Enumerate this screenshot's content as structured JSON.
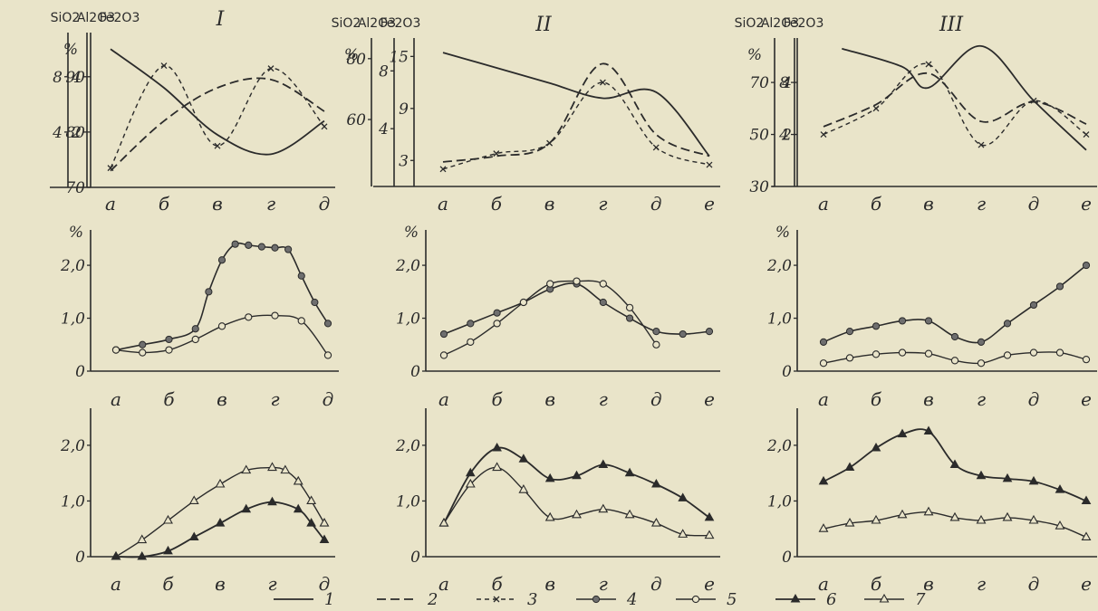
{
  "legend": {
    "items": [
      {
        "key": "1",
        "label": "1",
        "style": "solid"
      },
      {
        "key": "2",
        "label": "2",
        "style": "dash"
      },
      {
        "key": "3",
        "label": "3",
        "style": "dash-x"
      },
      {
        "key": "4",
        "label": "4",
        "style": "filled-circle"
      },
      {
        "key": "5",
        "label": "5",
        "style": "open-circle"
      },
      {
        "key": "6",
        "label": "6",
        "style": "filled-triangle"
      },
      {
        "key": "7",
        "label": "7",
        "style": "open-triangle"
      }
    ]
  },
  "colors": {
    "ink": "#2b2b2b",
    "paper": "#e9e4c9"
  },
  "chart_data": [
    {
      "type": "line",
      "title": "I",
      "panel": "top-left",
      "axis_labels": [
        "SiO2",
        "Al2O3",
        "Fe2O3"
      ],
      "unit": "%",
      "categories": [
        "а",
        "б",
        "в",
        "г",
        "д"
      ],
      "axes": [
        {
          "name": "SiO2",
          "ticks": [
            "70",
            "80",
            "90"
          ],
          "range": [
            70,
            97
          ]
        },
        {
          "name": "Al2O3",
          "ticks": [
            "4",
            "8"
          ],
          "range": [
            0,
            10.8
          ]
        },
        {
          "name": "Fe2O3",
          "ticks": [
            "2",
            "4"
          ],
          "range": [
            0,
            5.4
          ]
        }
      ],
      "series": [
        {
          "key": "1",
          "axis": 0,
          "x": [
            0,
            1,
            2,
            3,
            4
          ],
          "values": [
            95,
            88,
            79.5,
            76,
            82
          ]
        },
        {
          "key": "2",
          "axis": 1,
          "x": [
            0,
            1,
            2,
            3,
            4
          ],
          "values": [
            1.2,
            4.8,
            7.2,
            7.8,
            5.5
          ]
        },
        {
          "key": "3",
          "axis": 2,
          "x": [
            0,
            1,
            2,
            3,
            4
          ],
          "values": [
            0.7,
            4.4,
            1.5,
            4.3,
            2.2
          ]
        }
      ]
    },
    {
      "type": "line",
      "title": "II",
      "panel": "top-middle",
      "axis_labels": [
        "SiO2",
        "Al2O3",
        "Fe2O3"
      ],
      "unit": "%",
      "categories": [
        "а",
        "б",
        "в",
        "г",
        "д",
        "е"
      ],
      "axes": [
        {
          "name": "SiO2",
          "ticks": [
            "60",
            "80"
          ],
          "range": [
            38,
            85
          ]
        },
        {
          "name": "Al2O3",
          "ticks": [
            "4",
            "8"
          ],
          "range": [
            0,
            9.9
          ]
        },
        {
          "name": "Fe2O3",
          "ticks": [
            "3",
            "9",
            "15"
          ],
          "range": [
            0,
            16.5
          ]
        }
      ],
      "series": [
        {
          "key": "1",
          "axis": 0,
          "x": [
            0,
            1,
            2,
            3,
            4,
            5
          ],
          "values": [
            82,
            77,
            72,
            67,
            69,
            48
          ]
        },
        {
          "key": "2",
          "axis": 1,
          "x": [
            0,
            1,
            2,
            3,
            4,
            5
          ],
          "values": [
            1.7,
            2.1,
            3.0,
            8.5,
            3.6,
            2.1
          ]
        },
        {
          "key": "3",
          "axis": 2,
          "x": [
            0,
            1,
            2,
            3,
            4,
            5
          ],
          "values": [
            2.0,
            3.8,
            5.0,
            12.0,
            4.5,
            2.5
          ]
        }
      ]
    },
    {
      "type": "line",
      "title": "III",
      "panel": "top-right",
      "axis_labels": [
        "SiO2",
        "Al2O3",
        "Fe2O3"
      ],
      "unit": "%",
      "categories": [
        "а",
        "б",
        "в",
        "г",
        "д",
        "е"
      ],
      "axes": [
        {
          "name": "SiO2",
          "ticks": [
            "30",
            "50",
            "70"
          ],
          "range": [
            30,
            85
          ]
        },
        {
          "name": "Al2O3",
          "ticks": [
            "4",
            "8"
          ],
          "range": [
            0,
            11
          ]
        },
        {
          "name": "Fe2O3",
          "ticks": [
            "2",
            "4"
          ],
          "range": [
            0,
            5.5
          ]
        }
      ],
      "series": [
        {
          "key": "1",
          "axis": 0,
          "x": [
            0.35,
            1.5,
            2,
            3,
            4,
            5
          ],
          "values": [
            83,
            76,
            68,
            84,
            63,
            44
          ]
        },
        {
          "key": "2",
          "axis": 1,
          "x": [
            0,
            1,
            2,
            3,
            4,
            5
          ],
          "values": [
            4.6,
            6.3,
            8.7,
            5.0,
            6.5,
            4.8
          ]
        },
        {
          "key": "3",
          "axis": 2,
          "x": [
            0,
            1,
            2,
            3,
            4,
            5
          ],
          "values": [
            2.0,
            3.0,
            4.7,
            1.6,
            3.3,
            2.0
          ]
        }
      ]
    },
    {
      "type": "line",
      "panel": "middle-left",
      "unit": "%",
      "categories": [
        "а",
        "б",
        "в",
        "г",
        "д"
      ],
      "yticks": [
        "0",
        "1,0",
        "2,0"
      ],
      "ylim": [
        0,
        2.6
      ],
      "series": [
        {
          "key": "4",
          "x": [
            0,
            0.5,
            1,
            1.5,
            1.75,
            2,
            2.25,
            2.5,
            2.75,
            3,
            3.25,
            3.5,
            3.75,
            4
          ],
          "values": [
            0.4,
            0.5,
            0.6,
            0.8,
            1.5,
            2.1,
            2.4,
            2.38,
            2.35,
            2.33,
            2.3,
            1.8,
            1.3,
            0.9
          ]
        },
        {
          "key": "5",
          "x": [
            0,
            0.5,
            1,
            1.5,
            2,
            2.5,
            3,
            3.5,
            4
          ],
          "values": [
            0.4,
            0.35,
            0.4,
            0.6,
            0.85,
            1.02,
            1.05,
            0.95,
            0.3
          ]
        }
      ]
    },
    {
      "type": "line",
      "panel": "middle-middle",
      "unit": "%",
      "categories": [
        "а",
        "б",
        "в",
        "г",
        "д",
        "е"
      ],
      "yticks": [
        "0",
        "1,0",
        "2,0"
      ],
      "ylim": [
        0,
        2.6
      ],
      "series": [
        {
          "key": "4",
          "x": [
            0,
            0.5,
            1,
            1.5,
            2,
            2.5,
            3,
            3.5,
            4,
            4.5,
            5
          ],
          "values": [
            0.7,
            0.9,
            1.1,
            1.3,
            1.55,
            1.65,
            1.3,
            1.0,
            0.75,
            0.7,
            0.75
          ]
        },
        {
          "key": "5",
          "x": [
            0,
            0.5,
            1,
            1.5,
            2,
            2.5,
            3,
            3.5,
            4
          ],
          "values": [
            0.3,
            0.55,
            0.9,
            1.3,
            1.65,
            1.7,
            1.65,
            1.2,
            0.5
          ]
        }
      ]
    },
    {
      "type": "line",
      "panel": "middle-right",
      "unit": "%",
      "categories": [
        "а",
        "б",
        "в",
        "г",
        "д",
        "е"
      ],
      "yticks": [
        "0",
        "1,0",
        "2,0"
      ],
      "ylim": [
        0,
        2.6
      ],
      "series": [
        {
          "key": "4",
          "x": [
            0,
            0.5,
            1,
            1.5,
            2,
            2.5,
            3,
            3.5,
            4,
            4.5,
            5
          ],
          "values": [
            0.55,
            0.75,
            0.85,
            0.95,
            0.95,
            0.65,
            0.55,
            0.9,
            1.25,
            1.6,
            2.0
          ]
        },
        {
          "key": "5",
          "x": [
            0,
            0.5,
            1,
            1.5,
            2,
            2.5,
            3,
            3.5,
            4,
            4.5,
            5
          ],
          "values": [
            0.15,
            0.25,
            0.32,
            0.35,
            0.33,
            0.2,
            0.15,
            0.3,
            0.35,
            0.35,
            0.22
          ]
        }
      ]
    },
    {
      "type": "line",
      "panel": "bottom-left",
      "categories": [
        "а",
        "б",
        "в",
        "г",
        "д"
      ],
      "yticks": [
        "0",
        "1,0",
        "2,0"
      ],
      "ylim": [
        0,
        2.6
      ],
      "series": [
        {
          "key": "7",
          "x": [
            0,
            0.5,
            1,
            1.5,
            2,
            2.5,
            3,
            3.25,
            3.5,
            3.75,
            4
          ],
          "values": [
            0,
            0.3,
            0.65,
            1.0,
            1.3,
            1.55,
            1.6,
            1.55,
            1.35,
            1.0,
            0.6
          ]
        },
        {
          "key": "6",
          "x": [
            0,
            0.5,
            1,
            1.5,
            2,
            2.5,
            3,
            3.5,
            3.75,
            4
          ],
          "values": [
            0,
            0,
            0.1,
            0.35,
            0.6,
            0.85,
            0.98,
            0.85,
            0.6,
            0.3
          ]
        }
      ]
    },
    {
      "type": "line",
      "panel": "bottom-middle",
      "categories": [
        "а",
        "б",
        "в",
        "г",
        "д",
        "е"
      ],
      "yticks": [
        "0",
        "1,0",
        "2,0"
      ],
      "ylim": [
        0,
        2.6
      ],
      "series": [
        {
          "key": "6",
          "x": [
            0,
            0.5,
            1,
            1.5,
            2,
            2.5,
            3,
            3.5,
            4,
            4.5,
            5
          ],
          "values": [
            0.6,
            1.5,
            1.95,
            1.75,
            1.4,
            1.45,
            1.65,
            1.5,
            1.3,
            1.05,
            0.7
          ]
        },
        {
          "key": "7",
          "x": [
            0,
            0.5,
            1,
            1.5,
            2,
            2.5,
            3,
            3.5,
            4,
            4.5,
            5
          ],
          "values": [
            0.6,
            1.3,
            1.6,
            1.2,
            0.7,
            0.75,
            0.85,
            0.75,
            0.6,
            0.4,
            0.38
          ]
        }
      ]
    },
    {
      "type": "line",
      "panel": "bottom-right",
      "categories": [
        "а",
        "б",
        "в",
        "г",
        "д",
        "е"
      ],
      "yticks": [
        "0",
        "1,0",
        "2,0"
      ],
      "ylim": [
        0,
        2.6
      ],
      "series": [
        {
          "key": "6",
          "x": [
            0,
            0.5,
            1,
            1.5,
            2,
            2.5,
            3,
            3.5,
            4,
            4.5,
            5
          ],
          "values": [
            1.35,
            1.6,
            1.95,
            2.2,
            2.25,
            1.65,
            1.45,
            1.4,
            1.35,
            1.2,
            1.0
          ]
        },
        {
          "key": "7",
          "x": [
            0,
            0.5,
            1,
            1.5,
            2,
            2.5,
            3,
            3.5,
            4,
            4.5,
            5
          ],
          "values": [
            0.5,
            0.6,
            0.65,
            0.75,
            0.8,
            0.7,
            0.65,
            0.7,
            0.65,
            0.55,
            0.35
          ]
        }
      ]
    }
  ]
}
